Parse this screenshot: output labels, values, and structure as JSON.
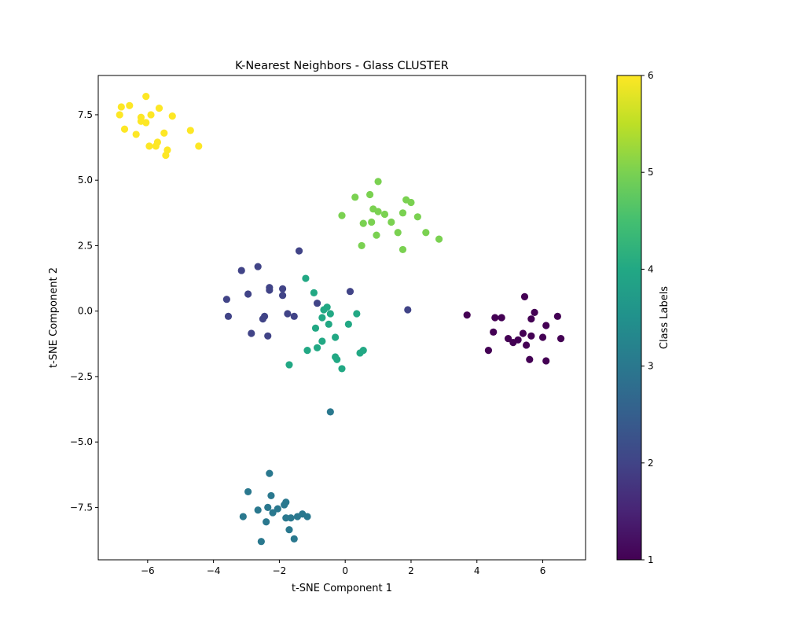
{
  "chart_data": {
    "type": "scatter",
    "title": "K-Nearest Neighbors - Glass CLUSTER",
    "xlabel": "t-SNE Component 1",
    "ylabel": "t-SNE Component 2",
    "xlim": [
      -7.5,
      7.3
    ],
    "ylim": [
      -9.5,
      9.0
    ],
    "xticks": [
      -6,
      -4,
      -2,
      0,
      2,
      4,
      6
    ],
    "xtick_labels": [
      "−6",
      "−4",
      "−2",
      "0",
      "2",
      "4",
      "6"
    ],
    "yticks": [
      -7.5,
      -5.0,
      -2.5,
      0.0,
      2.5,
      5.0,
      7.5
    ],
    "ytick_labels": [
      "−7.5",
      "−5.0",
      "−2.5",
      "0.0",
      "2.5",
      "5.0",
      "7.5"
    ],
    "grid": false,
    "legend": "none",
    "colorbar": {
      "label": "Class Labels",
      "min": 1,
      "max": 6,
      "ticks": [
        1,
        2,
        3,
        4,
        5,
        6
      ],
      "tick_labels": [
        "1",
        "2",
        "3",
        "4",
        "5",
        "6"
      ],
      "colormap": [
        "#440154",
        "#3b528b",
        "#21908d",
        "#5dc863",
        "#fde725"
      ],
      "colormap_stops": [
        {
          "v": 0.0,
          "c": "#440154"
        },
        {
          "v": 0.1,
          "c": "#482475"
        },
        {
          "v": 0.2,
          "c": "#414487"
        },
        {
          "v": 0.3,
          "c": "#355f8d"
        },
        {
          "v": 0.4,
          "c": "#2a788e"
        },
        {
          "v": 0.5,
          "c": "#21918c"
        },
        {
          "v": 0.6,
          "c": "#22a884"
        },
        {
          "v": 0.7,
          "c": "#44bf70"
        },
        {
          "v": 0.8,
          "c": "#7ad151"
        },
        {
          "v": 0.9,
          "c": "#bddf26"
        },
        {
          "v": 1.0,
          "c": "#fde725"
        }
      ]
    },
    "points": [
      {
        "x": -6.8,
        "y": 7.8,
        "c": 6
      },
      {
        "x": -6.85,
        "y": 7.5,
        "c": 6
      },
      {
        "x": -6.55,
        "y": 7.85,
        "c": 6
      },
      {
        "x": -6.05,
        "y": 8.2,
        "c": 6
      },
      {
        "x": -6.2,
        "y": 7.4,
        "c": 6
      },
      {
        "x": -6.2,
        "y": 7.25,
        "c": 6
      },
      {
        "x": -6.05,
        "y": 7.2,
        "c": 6
      },
      {
        "x": -5.9,
        "y": 7.5,
        "c": 6
      },
      {
        "x": -5.65,
        "y": 7.75,
        "c": 6
      },
      {
        "x": -5.25,
        "y": 7.45,
        "c": 6
      },
      {
        "x": -6.7,
        "y": 6.95,
        "c": 6
      },
      {
        "x": -6.35,
        "y": 6.75,
        "c": 6
      },
      {
        "x": -5.5,
        "y": 6.8,
        "c": 6
      },
      {
        "x": -5.7,
        "y": 6.45,
        "c": 6
      },
      {
        "x": -5.75,
        "y": 6.3,
        "c": 6
      },
      {
        "x": -5.95,
        "y": 6.3,
        "c": 6
      },
      {
        "x": -5.4,
        "y": 6.15,
        "c": 6
      },
      {
        "x": -5.45,
        "y": 5.95,
        "c": 6
      },
      {
        "x": -4.7,
        "y": 6.9,
        "c": 6
      },
      {
        "x": -4.45,
        "y": 6.3,
        "c": 6
      },
      {
        "x": 1.0,
        "y": 4.95,
        "c": 5
      },
      {
        "x": 0.3,
        "y": 4.35,
        "c": 5
      },
      {
        "x": 0.75,
        "y": 4.45,
        "c": 5
      },
      {
        "x": 1.85,
        "y": 4.25,
        "c": 5
      },
      {
        "x": 2.0,
        "y": 4.15,
        "c": 5
      },
      {
        "x": 0.85,
        "y": 3.9,
        "c": 5
      },
      {
        "x": 1.0,
        "y": 3.8,
        "c": 5
      },
      {
        "x": 1.2,
        "y": 3.7,
        "c": 5
      },
      {
        "x": 1.75,
        "y": 3.75,
        "c": 5
      },
      {
        "x": 2.2,
        "y": 3.6,
        "c": 5
      },
      {
        "x": -0.1,
        "y": 3.65,
        "c": 5
      },
      {
        "x": 0.55,
        "y": 3.35,
        "c": 5
      },
      {
        "x": 0.8,
        "y": 3.4,
        "c": 5
      },
      {
        "x": 1.4,
        "y": 3.4,
        "c": 5
      },
      {
        "x": 1.6,
        "y": 3.0,
        "c": 5
      },
      {
        "x": 2.45,
        "y": 3.0,
        "c": 5
      },
      {
        "x": 0.95,
        "y": 2.9,
        "c": 5
      },
      {
        "x": 2.85,
        "y": 2.75,
        "c": 5
      },
      {
        "x": 0.5,
        "y": 2.5,
        "c": 5
      },
      {
        "x": 1.75,
        "y": 2.35,
        "c": 5
      },
      {
        "x": -1.2,
        "y": 1.25,
        "c": 4
      },
      {
        "x": -0.95,
        "y": 0.7,
        "c": 4
      },
      {
        "x": -0.55,
        "y": 0.15,
        "c": 4
      },
      {
        "x": -0.65,
        "y": 0.05,
        "c": 4
      },
      {
        "x": -0.45,
        "y": -0.1,
        "c": 4
      },
      {
        "x": -0.7,
        "y": -0.25,
        "c": 4
      },
      {
        "x": 0.35,
        "y": -0.1,
        "c": 4
      },
      {
        "x": -0.5,
        "y": -0.5,
        "c": 4
      },
      {
        "x": 0.1,
        "y": -0.5,
        "c": 4
      },
      {
        "x": -0.9,
        "y": -0.65,
        "c": 4
      },
      {
        "x": -0.3,
        "y": -1.0,
        "c": 4
      },
      {
        "x": -0.7,
        "y": -1.15,
        "c": 4
      },
      {
        "x": -1.15,
        "y": -1.5,
        "c": 4
      },
      {
        "x": -0.85,
        "y": -1.4,
        "c": 4
      },
      {
        "x": 0.45,
        "y": -1.6,
        "c": 4
      },
      {
        "x": 0.55,
        "y": -1.5,
        "c": 4
      },
      {
        "x": -0.3,
        "y": -1.75,
        "c": 4
      },
      {
        "x": -0.25,
        "y": -1.85,
        "c": 4
      },
      {
        "x": -1.7,
        "y": -2.05,
        "c": 4
      },
      {
        "x": -0.1,
        "y": -2.2,
        "c": 4
      },
      {
        "x": -1.4,
        "y": 2.3,
        "c": 2
      },
      {
        "x": -2.65,
        "y": 1.7,
        "c": 2
      },
      {
        "x": -3.15,
        "y": 1.55,
        "c": 2
      },
      {
        "x": -2.3,
        "y": 0.9,
        "c": 2
      },
      {
        "x": -2.3,
        "y": 0.8,
        "c": 2
      },
      {
        "x": -1.9,
        "y": 0.85,
        "c": 2
      },
      {
        "x": -1.9,
        "y": 0.6,
        "c": 2
      },
      {
        "x": 0.15,
        "y": 0.75,
        "c": 2
      },
      {
        "x": -2.95,
        "y": 0.65,
        "c": 2
      },
      {
        "x": -3.6,
        "y": 0.45,
        "c": 2
      },
      {
        "x": -0.85,
        "y": 0.3,
        "c": 2
      },
      {
        "x": -3.55,
        "y": -0.2,
        "c": 2
      },
      {
        "x": -2.45,
        "y": -0.2,
        "c": 2
      },
      {
        "x": -2.5,
        "y": -0.3,
        "c": 2
      },
      {
        "x": -1.75,
        "y": -0.1,
        "c": 2
      },
      {
        "x": -1.55,
        "y": -0.2,
        "c": 2
      },
      {
        "x": 1.9,
        "y": 0.05,
        "c": 2
      },
      {
        "x": -2.85,
        "y": -0.85,
        "c": 2
      },
      {
        "x": -2.35,
        "y": -0.95,
        "c": 2
      },
      {
        "x": -0.45,
        "y": -3.85,
        "c": 3
      },
      {
        "x": -2.3,
        "y": -6.2,
        "c": 3
      },
      {
        "x": -2.95,
        "y": -6.9,
        "c": 3
      },
      {
        "x": -2.25,
        "y": -7.05,
        "c": 3
      },
      {
        "x": -1.8,
        "y": -7.3,
        "c": 3
      },
      {
        "x": -1.85,
        "y": -7.4,
        "c": 3
      },
      {
        "x": -2.35,
        "y": -7.5,
        "c": 3
      },
      {
        "x": -2.65,
        "y": -7.6,
        "c": 3
      },
      {
        "x": -2.05,
        "y": -7.55,
        "c": 3
      },
      {
        "x": -2.2,
        "y": -7.7,
        "c": 3
      },
      {
        "x": -1.3,
        "y": -7.75,
        "c": 3
      },
      {
        "x": -1.45,
        "y": -7.85,
        "c": 3
      },
      {
        "x": -1.15,
        "y": -7.85,
        "c": 3
      },
      {
        "x": -1.8,
        "y": -7.9,
        "c": 3
      },
      {
        "x": -1.65,
        "y": -7.9,
        "c": 3
      },
      {
        "x": -3.1,
        "y": -7.85,
        "c": 3
      },
      {
        "x": -2.4,
        "y": -8.05,
        "c": 3
      },
      {
        "x": -1.7,
        "y": -8.35,
        "c": 3
      },
      {
        "x": -1.55,
        "y": -8.7,
        "c": 3
      },
      {
        "x": -2.55,
        "y": -8.8,
        "c": 3
      },
      {
        "x": 3.7,
        "y": -0.15,
        "c": 1
      },
      {
        "x": 5.45,
        "y": 0.55,
        "c": 1
      },
      {
        "x": 5.75,
        "y": -0.05,
        "c": 1
      },
      {
        "x": 4.55,
        "y": -0.25,
        "c": 1
      },
      {
        "x": 4.75,
        "y": -0.25,
        "c": 1
      },
      {
        "x": 5.65,
        "y": -0.3,
        "c": 1
      },
      {
        "x": 6.45,
        "y": -0.2,
        "c": 1
      },
      {
        "x": 6.1,
        "y": -0.55,
        "c": 1
      },
      {
        "x": 4.5,
        "y": -0.8,
        "c": 1
      },
      {
        "x": 5.4,
        "y": -0.85,
        "c": 1
      },
      {
        "x": 5.65,
        "y": -0.95,
        "c": 1
      },
      {
        "x": 6.0,
        "y": -1.0,
        "c": 1
      },
      {
        "x": 6.55,
        "y": -1.05,
        "c": 1
      },
      {
        "x": 4.95,
        "y": -1.05,
        "c": 1
      },
      {
        "x": 5.25,
        "y": -1.1,
        "c": 1
      },
      {
        "x": 5.1,
        "y": -1.2,
        "c": 1
      },
      {
        "x": 5.5,
        "y": -1.3,
        "c": 1
      },
      {
        "x": 4.35,
        "y": -1.5,
        "c": 1
      },
      {
        "x": 5.6,
        "y": -1.85,
        "c": 1
      },
      {
        "x": 6.1,
        "y": -1.9,
        "c": 1
      }
    ]
  }
}
